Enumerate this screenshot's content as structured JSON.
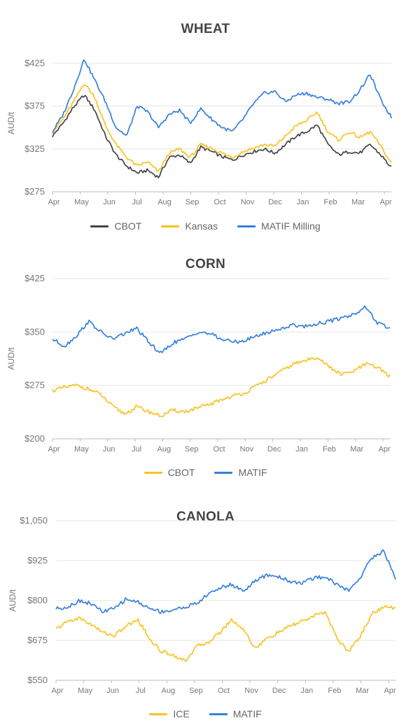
{
  "chart_data": [
    {
      "type": "line",
      "title": "WHEAT",
      "ylabel": "AUD/t",
      "yticks": [
        "$275",
        "$325",
        "$375",
        "$425"
      ],
      "ylim": [
        275,
        435
      ],
      "x_ticks": [
        "Apr",
        "May",
        "Jun",
        "Jul",
        "Aug",
        "Sep",
        "Oct",
        "Nov",
        "Dec",
        "Jan",
        "Feb",
        "Mar",
        "Apr"
      ],
      "grid": "horizontal",
      "legend_position": "bottom",
      "series": [
        {
          "name": "CBOT",
          "color": "#444444",
          "values": [
            340,
            355,
            374,
            388,
            370,
            340,
            318,
            305,
            297,
            300,
            292,
            315,
            318,
            308,
            327,
            322,
            316,
            312,
            318,
            322,
            325,
            320,
            330,
            340,
            345,
            353,
            330,
            318,
            322,
            320,
            330,
            318,
            303
          ]
        },
        {
          "name": "Kansas",
          "color": "#f7c325",
          "values": [
            345,
            360,
            380,
            402,
            385,
            352,
            330,
            315,
            305,
            310,
            298,
            320,
            325,
            315,
            330,
            326,
            320,
            315,
            322,
            326,
            330,
            328,
            340,
            352,
            358,
            368,
            345,
            335,
            345,
            338,
            345,
            328,
            308
          ]
        },
        {
          "name": "MATIF Milling",
          "color": "#3680dc",
          "values": [
            345,
            365,
            395,
            430,
            405,
            380,
            350,
            340,
            375,
            368,
            350,
            365,
            370,
            355,
            372,
            360,
            350,
            345,
            360,
            378,
            390,
            392,
            380,
            388,
            390,
            385,
            383,
            378,
            380,
            393,
            412,
            382,
            362
          ]
        }
      ]
    },
    {
      "type": "line",
      "title": "CORN",
      "ylabel": "AUD/t",
      "yticks": [
        "$200",
        "$275",
        "$350",
        "$425"
      ],
      "ylim": [
        200,
        425
      ],
      "x_ticks": [
        "Apr",
        "May",
        "Jun",
        "Jul",
        "Aug",
        "Sep",
        "Oct",
        "Nov",
        "Dec",
        "Jan",
        "Feb",
        "Mar",
        "Apr"
      ],
      "grid": "horizontal",
      "legend_position": "bottom",
      "series": [
        {
          "name": "CBOT",
          "color": "#f7c325",
          "values": [
            268,
            272,
            275,
            270,
            262,
            245,
            235,
            245,
            238,
            232,
            240,
            238,
            243,
            248,
            255,
            260,
            265,
            275,
            285,
            295,
            305,
            310,
            315,
            300,
            290,
            295,
            305,
            300,
            288
          ]
        },
        {
          "name": "MATIF",
          "color": "#3680dc",
          "values": [
            340,
            330,
            345,
            365,
            350,
            340,
            348,
            355,
            335,
            320,
            335,
            340,
            350,
            348,
            340,
            336,
            338,
            345,
            350,
            355,
            360,
            358,
            362,
            365,
            370,
            375,
            385,
            362,
            355
          ]
        }
      ]
    },
    {
      "type": "line",
      "title": "CANOLA",
      "ylabel": "AUD/t",
      "yticks": [
        "$550",
        "$675",
        "$800",
        "$925",
        "$1,050"
      ],
      "ylim": [
        550,
        1050
      ],
      "x_ticks": [
        "Apr",
        "May",
        "Jun",
        "Jul",
        "Aug",
        "Sep",
        "Oct",
        "Nov",
        "Dec",
        "Jan",
        "Feb",
        "Mar",
        "Apr"
      ],
      "grid": "horizontal",
      "legend_position": "bottom",
      "series": [
        {
          "name": "ICE",
          "color": "#f7c325",
          "values": [
            710,
            735,
            745,
            725,
            700,
            690,
            720,
            740,
            680,
            640,
            630,
            610,
            655,
            670,
            700,
            740,
            710,
            650,
            680,
            700,
            720,
            735,
            750,
            765,
            680,
            640,
            690,
            760,
            780,
            775
          ]
        },
        {
          "name": "MATIF",
          "color": "#3680dc",
          "values": [
            775,
            780,
            800,
            790,
            765,
            775,
            805,
            795,
            775,
            765,
            770,
            780,
            790,
            820,
            840,
            850,
            830,
            860,
            880,
            875,
            860,
            855,
            870,
            875,
            850,
            830,
            875,
            935,
            955,
            870
          ]
        }
      ]
    }
  ]
}
